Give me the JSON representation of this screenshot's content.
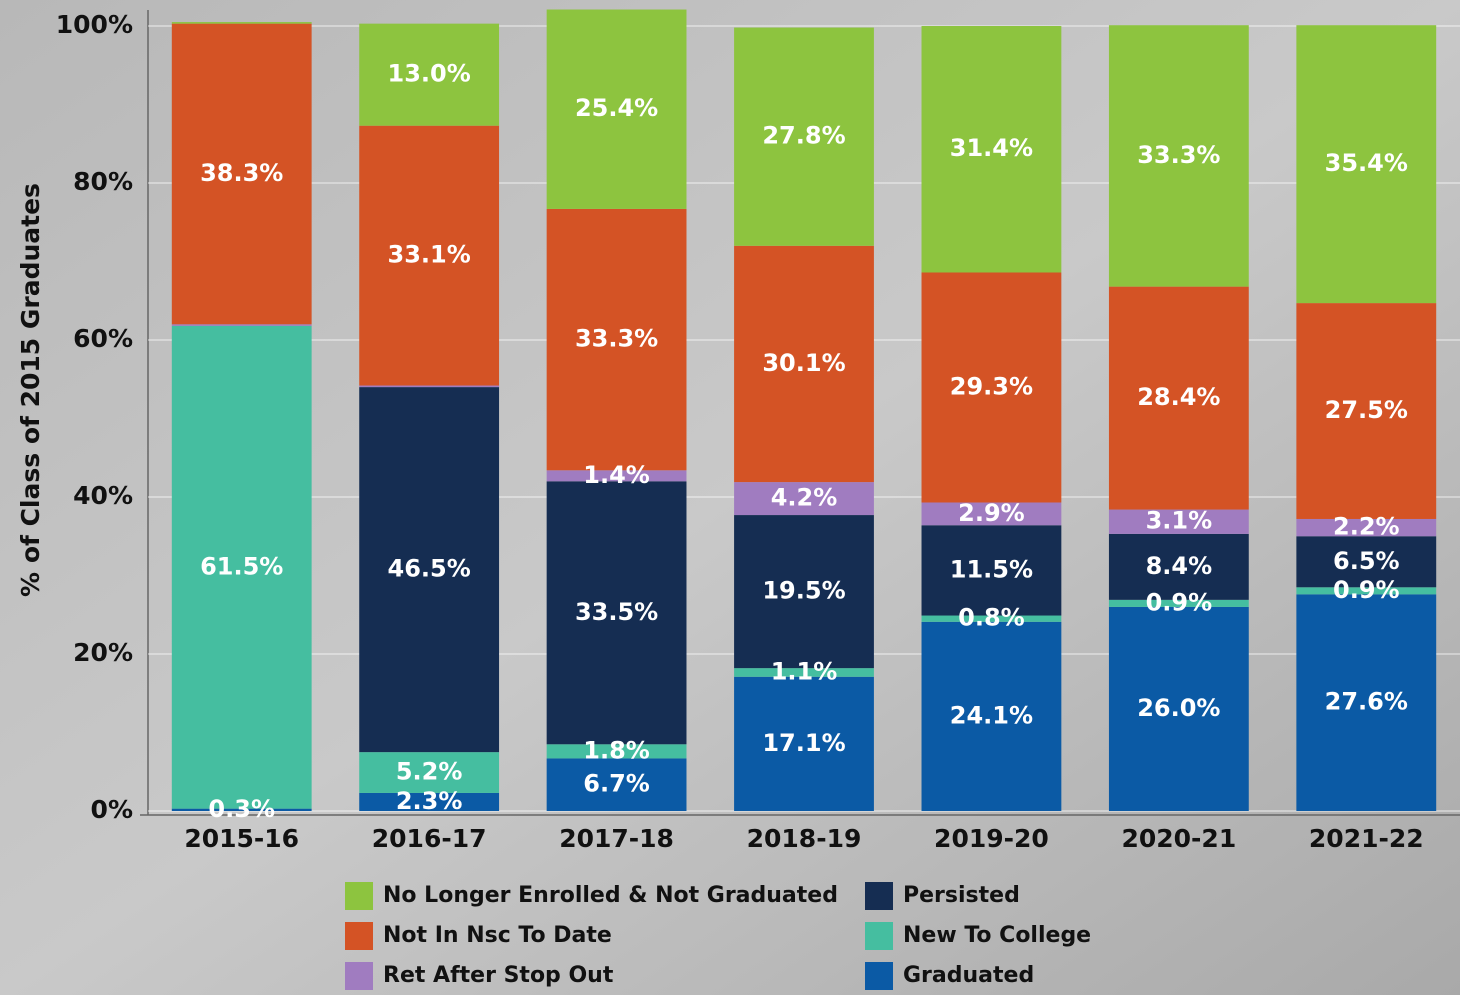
{
  "chart_data": {
    "type": "stacked_bar",
    "y_axis_label": "% of Class of 2015 Graduates",
    "categories": [
      "2015-16",
      "2016-17",
      "2017-18",
      "2018-19",
      "2019-20",
      "2020-21",
      "2021-22"
    ],
    "ylim": [
      0,
      102.5
    ],
    "yticks": [
      {
        "value": 0,
        "label": "0%"
      },
      {
        "value": 20,
        "label": "20%"
      },
      {
        "value": 40,
        "label": "40%"
      },
      {
        "value": 60,
        "label": "60%"
      },
      {
        "value": 80,
        "label": "80%"
      },
      {
        "value": 100,
        "label": "100%"
      }
    ],
    "grid": true,
    "series": [
      {
        "name": "Graduated",
        "color": "#0b5aa5",
        "values": [
          0.3,
          2.3,
          6.7,
          17.1,
          24.1,
          26.0,
          27.6
        ],
        "value_labels": [
          "0.3%",
          "2.3%",
          "6.7%",
          "17.1%",
          "24.1%",
          "26.0%",
          "27.6%"
        ]
      },
      {
        "name": "New To College",
        "color": "#45bea0",
        "values": [
          61.5,
          5.2,
          1.8,
          1.1,
          0.8,
          0.9,
          0.9
        ],
        "value_labels": [
          "61.5%",
          "5.2%",
          "1.8%",
          "1.1%",
          "0.8%",
          "0.9%",
          "0.9%"
        ]
      },
      {
        "name": "Persisted",
        "color": "#152d52",
        "values": [
          null,
          46.5,
          33.5,
          19.5,
          11.5,
          8.4,
          6.5
        ],
        "value_labels": [
          null,
          "46.5%",
          "33.5%",
          "19.5%",
          "11.5%",
          "8.4%",
          "6.5%"
        ]
      },
      {
        "name": "Ret After Stop Out",
        "color": "#a07cc0",
        "values": [
          0.2,
          0.2,
          1.4,
          4.2,
          2.9,
          3.1,
          2.2
        ],
        "value_labels": [
          null,
          null,
          "1.4%",
          "4.2%",
          "2.9%",
          "3.1%",
          "2.2%"
        ]
      },
      {
        "name": "Not In Nsc To Date",
        "color": "#d45325",
        "values": [
          38.3,
          33.1,
          33.3,
          30.1,
          29.3,
          28.4,
          27.5
        ],
        "value_labels": [
          "38.3%",
          "33.1%",
          "33.3%",
          "30.1%",
          "29.3%",
          "28.4%",
          "27.5%"
        ]
      },
      {
        "name": "No Longer Enrolled & Not Graduated",
        "color": "#8dc43f",
        "values": [
          0.2,
          13.0,
          25.4,
          27.8,
          31.4,
          33.3,
          35.4
        ],
        "value_labels": [
          null,
          "13.0%",
          "25.4%",
          "27.8%",
          "31.4%",
          "33.3%",
          "35.4%"
        ]
      }
    ]
  }
}
